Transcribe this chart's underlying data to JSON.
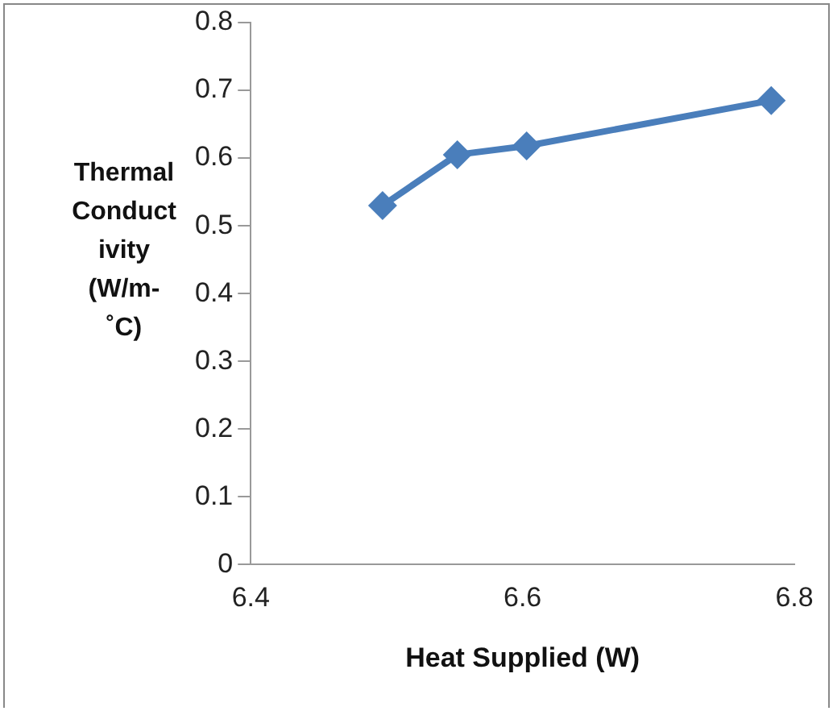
{
  "chart_data": {
    "type": "line",
    "xlabel": "Heat Supplied (W)",
    "ylabel": "Thermal Conductivity (W/m-˚C)",
    "x": [
      6.497,
      6.552,
      6.603,
      6.783
    ],
    "series": [
      {
        "color": "#4a7ebb",
        "values": [
          0.53,
          0.605,
          0.618,
          0.685
        ]
      }
    ],
    "xlim": [
      6.4,
      6.8
    ],
    "xticks": [
      6.4,
      6.6,
      6.8
    ],
    "ylim": [
      0,
      0.8
    ],
    "yticks": [
      0,
      0.1,
      0.2,
      0.3,
      0.4,
      0.5,
      0.6,
      0.7,
      0.8
    ],
    "grid": false,
    "legend": false,
    "marker": "diamond",
    "line_style": "solid"
  }
}
